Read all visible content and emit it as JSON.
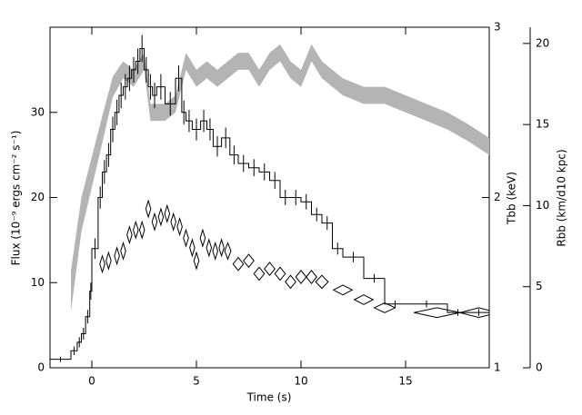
{
  "chart_data": {
    "type": "line",
    "xlabel": "Time (s)",
    "ylabel": "Flux (10⁻⁹ ergs cm⁻² s⁻¹)",
    "y2label": "Tbb (keV)",
    "y3label": "Rbb (km/d10 kpc)",
    "xlim": [
      -2,
      19
    ],
    "xticks": [
      0,
      5,
      10,
      15
    ],
    "ylim": [
      0,
      40
    ],
    "yticks": [
      0,
      10,
      20,
      30
    ],
    "y2lim": [
      1,
      3
    ],
    "y2ticks": [
      1,
      2,
      3
    ],
    "y3lim": [
      0,
      21
    ],
    "y3ticks": [
      0,
      5,
      10,
      15,
      20
    ],
    "series": [
      {
        "style": "step",
        "color": "#000000",
        "x": [
          -2,
          -1,
          -0.7,
          -0.5,
          -0.3,
          -0.1,
          0,
          0.3,
          0.5,
          0.7,
          0.9,
          1.1,
          1.3,
          1.5,
          1.7,
          1.9,
          2.1,
          2.3,
          2.5,
          2.7,
          2.9,
          3.1,
          3.5,
          4.0,
          4.3,
          4.5,
          4.8,
          5.2,
          5.5,
          5.8,
          6.2,
          6.6,
          7,
          7.5,
          8,
          8.5,
          9,
          9.5,
          10,
          10.5,
          11,
          11.5,
          12,
          13,
          14,
          15,
          17,
          18
        ],
        "values": [
          1,
          2,
          3,
          4,
          6,
          9,
          14,
          20,
          23,
          25,
          28,
          30,
          32,
          33,
          34,
          35,
          36,
          37.5,
          35,
          33,
          32,
          33,
          31,
          34,
          30,
          29,
          28,
          29,
          28,
          26,
          27,
          25,
          24,
          23.5,
          23,
          22,
          20,
          20,
          19.5,
          18,
          17,
          14,
          13,
          10.5,
          7.5,
          7.5,
          6.5,
          6.5
        ],
        "errors": [
          0.3,
          0.5,
          0.6,
          0.7,
          0.8,
          1,
          1.2,
          1.3,
          1.4,
          1.4,
          1.5,
          1.5,
          1.5,
          1.5,
          1.5,
          1.5,
          1.5,
          1.6,
          1.5,
          1.5,
          1.5,
          1.5,
          1.4,
          1.5,
          1.4,
          1.3,
          1.3,
          1.3,
          1.3,
          1.2,
          1.2,
          1.1,
          1,
          1,
          1,
          1,
          0.9,
          0.9,
          0.9,
          0.8,
          0.8,
          0.7,
          0.6,
          0.5,
          0.4,
          0.4,
          0.4,
          0.4
        ]
      },
      {
        "style": "band",
        "axis": "y2",
        "color": "#b4b4b4",
        "x": [
          -1,
          -0.5,
          0,
          0.5,
          1,
          1.5,
          2,
          2.5,
          2.8,
          3.5,
          4,
          4.5,
          5,
          5.5,
          6,
          6.5,
          7,
          7.5,
          8,
          8.5,
          9,
          9.5,
          10,
          10.5,
          11,
          11.5,
          12,
          13,
          14,
          15,
          16,
          17,
          18,
          19
        ],
        "values": [
          1.45,
          1.9,
          2.15,
          2.4,
          2.65,
          2.75,
          2.7,
          2.8,
          2.5,
          2.5,
          2.55,
          2.8,
          2.7,
          2.75,
          2.7,
          2.75,
          2.8,
          2.8,
          2.7,
          2.8,
          2.85,
          2.75,
          2.7,
          2.85,
          2.75,
          2.7,
          2.65,
          2.6,
          2.6,
          2.55,
          2.5,
          2.45,
          2.38,
          2.3
        ],
        "errors": [
          0.12,
          0.1,
          0.09,
          0.08,
          0.06,
          0.05,
          0.05,
          0.05,
          0.05,
          0.05,
          0.05,
          0.05,
          0.05,
          0.05,
          0.05,
          0.05,
          0.05,
          0.05,
          0.05,
          0.05,
          0.05,
          0.05,
          0.05,
          0.05,
          0.05,
          0.05,
          0.05,
          0.05,
          0.05,
          0.05,
          0.05,
          0.05,
          0.05,
          0.05
        ]
      },
      {
        "style": "diamond",
        "axis": "y3",
        "color": "#000000",
        "x": [
          0.5,
          0.8,
          1.2,
          1.5,
          1.8,
          2.1,
          2.4,
          2.7,
          3,
          3.3,
          3.6,
          3.9,
          4.2,
          4.5,
          4.8,
          5,
          5.3,
          5.6,
          5.9,
          6.2,
          6.5,
          7,
          7.5,
          8,
          8.5,
          9,
          9.5,
          10,
          10.5,
          11,
          12,
          13,
          14,
          16.5,
          18.5
        ],
        "xerr": [
          0.12,
          0.12,
          0.12,
          0.12,
          0.12,
          0.12,
          0.12,
          0.12,
          0.12,
          0.12,
          0.12,
          0.12,
          0.12,
          0.12,
          0.12,
          0.12,
          0.12,
          0.12,
          0.12,
          0.12,
          0.15,
          0.25,
          0.25,
          0.25,
          0.25,
          0.25,
          0.25,
          0.25,
          0.25,
          0.3,
          0.45,
          0.45,
          0.5,
          1.1,
          0.9
        ],
        "values": [
          6.4,
          6.6,
          6.9,
          7.2,
          8.2,
          8.5,
          8.5,
          9.8,
          9,
          9.3,
          9.5,
          9,
          8.7,
          8,
          7.4,
          6.6,
          8,
          7.4,
          7.2,
          7.4,
          7.2,
          6.4,
          6.6,
          5.8,
          6.1,
          5.8,
          5.3,
          5.6,
          5.6,
          5.3,
          4.8,
          4.2,
          3.7,
          3.4,
          3.4
        ],
        "errors": [
          0.5,
          0.5,
          0.5,
          0.5,
          0.5,
          0.5,
          0.5,
          0.5,
          0.5,
          0.5,
          0.5,
          0.5,
          0.5,
          0.5,
          0.5,
          0.5,
          0.5,
          0.5,
          0.5,
          0.5,
          0.5,
          0.4,
          0.4,
          0.4,
          0.4,
          0.4,
          0.4,
          0.4,
          0.4,
          0.4,
          0.3,
          0.3,
          0.3,
          0.3,
          0.3
        ]
      }
    ]
  }
}
